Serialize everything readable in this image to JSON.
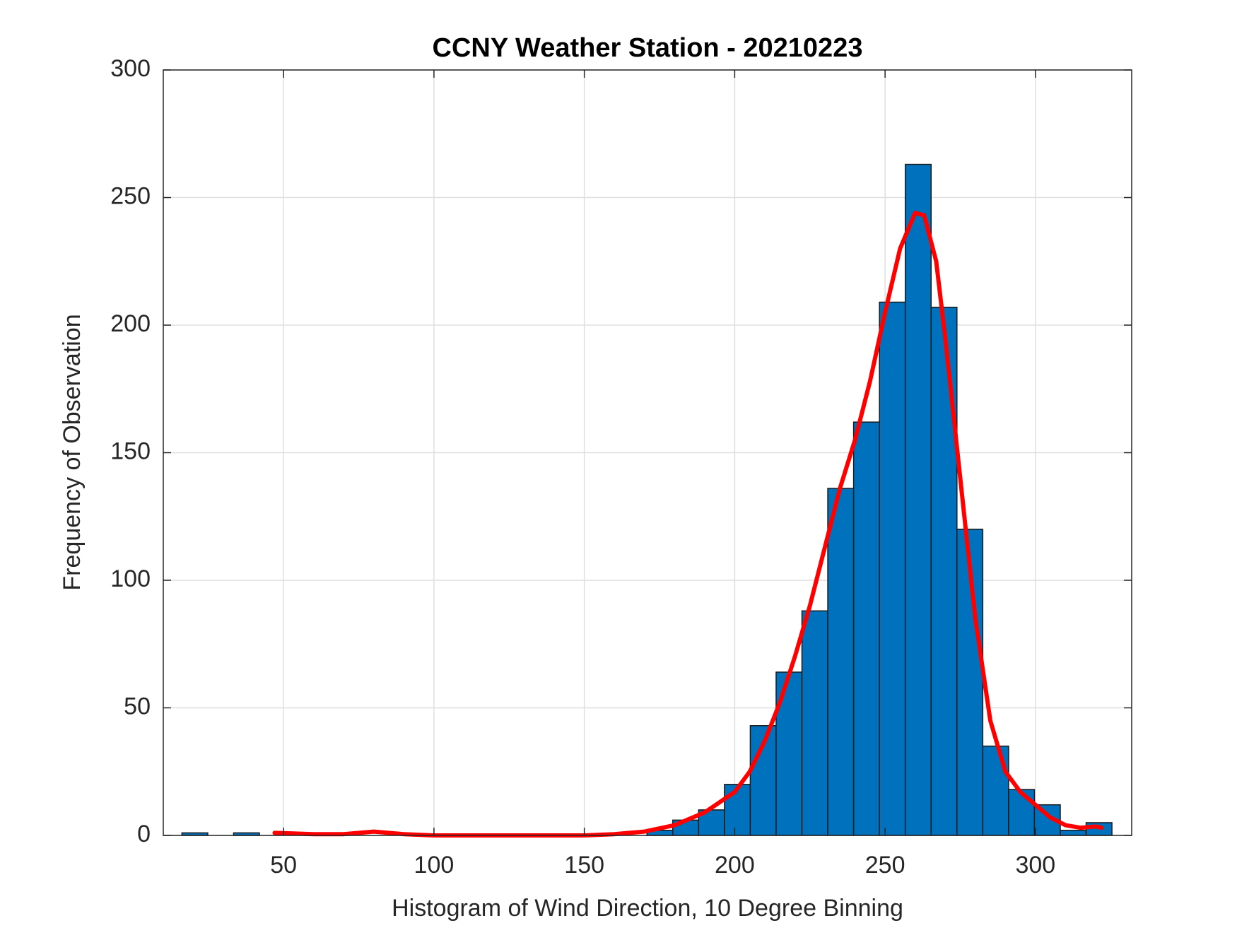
{
  "chart_data": {
    "type": "histogram",
    "title": "CCNY Weather Station - 20210223",
    "xlabel": "Histogram of Wind Direction, 10 Degree Binning",
    "ylabel": "Frequency of Observation",
    "bins": [
      16.2,
      24.79,
      33.38,
      41.97,
      50.56,
      59.15,
      67.74,
      76.33,
      84.92,
      93.51,
      102.1,
      110.69,
      119.28,
      127.87,
      136.46,
      145.05,
      153.64,
      162.23,
      170.82,
      179.41,
      188.0,
      196.59,
      205.18,
      213.77,
      222.36,
      230.95,
      239.54,
      248.13,
      256.72,
      265.31,
      273.9,
      282.49,
      291.08,
      299.67,
      308.26,
      316.85,
      325.44
    ],
    "counts": [
      1,
      0,
      1,
      0,
      0,
      0,
      0,
      0,
      0,
      0,
      0,
      0,
      0,
      0,
      0,
      0,
      0,
      0,
      2,
      6,
      10,
      20,
      43,
      64,
      88,
      136,
      162,
      209,
      263,
      207,
      120,
      35,
      18,
      12,
      2,
      5
    ],
    "color": "#0072bd",
    "edgecolor": "#1a1a1a",
    "line": {
      "color": "#ff0000",
      "x": [
        47,
        60,
        70,
        80,
        90,
        100,
        150,
        160,
        170,
        180,
        190,
        200,
        205,
        210,
        215,
        220,
        225,
        230,
        235,
        240,
        245,
        250,
        255,
        260,
        263,
        267,
        270,
        275,
        280,
        285,
        290,
        295,
        300,
        305,
        310,
        315,
        320,
        322
      ],
      "y": [
        1,
        0.5,
        0.5,
        1.5,
        0.5,
        0,
        0,
        0.5,
        1.5,
        4,
        9,
        17,
        25,
        37,
        52,
        70,
        90,
        113,
        136,
        155,
        178,
        205,
        230,
        244,
        243,
        225,
        195,
        140,
        85,
        45,
        25,
        17,
        12,
        7,
        4,
        3,
        3.5,
        3
      ]
    },
    "xlim": [
      10,
      332
    ],
    "ylim": [
      0,
      300
    ],
    "xticks": [
      50,
      100,
      150,
      200,
      250,
      300
    ],
    "yticks": [
      0,
      50,
      100,
      150,
      200,
      250,
      300
    ],
    "grid": true
  }
}
